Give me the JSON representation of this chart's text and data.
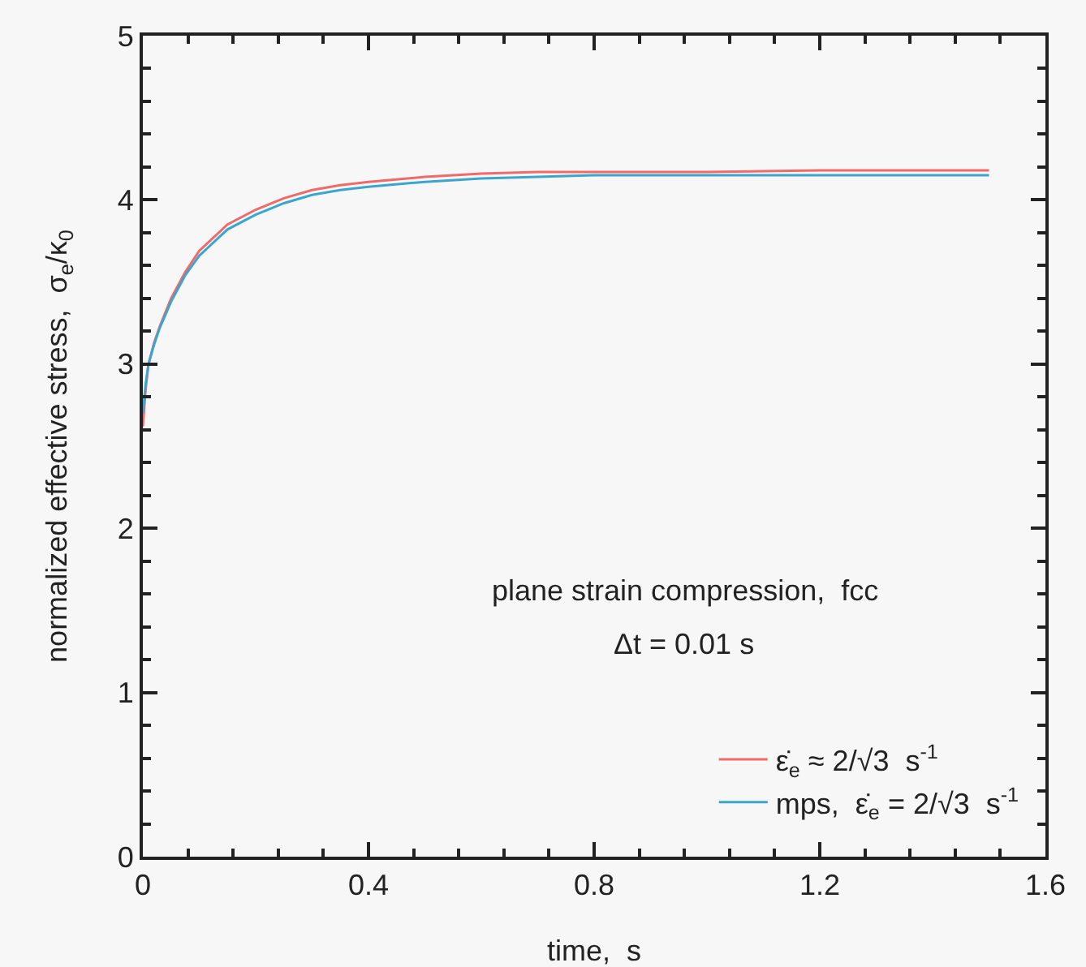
{
  "chart_data": {
    "type": "line",
    "xlabel": "time,  s",
    "ylabel": "normalized effective stress,  σ$_{e}$/κ$_{0}$",
    "xlim": [
      0,
      1.6
    ],
    "xticks": [
      0,
      0.4,
      0.8,
      1.2,
      1.6
    ],
    "ylim": [
      0,
      5
    ],
    "yticks": [
      0,
      1,
      2,
      3,
      4,
      5
    ],
    "grid": false,
    "legend": "bottom right",
    "line_style": "solid",
    "marker": "none",
    "annotations": [
      "plane strain compression,  fcc",
      "Δt = 0.01 s"
    ],
    "series": [
      {
        "name": "ε̇$_{e}$ ≈ 2/√3  s$^{-1}$",
        "color": "#f06a6a",
        "x": [
          0,
          0.005,
          0.01,
          0.02,
          0.03,
          0.05,
          0.075,
          0.1,
          0.15,
          0.2,
          0.25,
          0.3,
          0.35,
          0.4,
          0.5,
          0.6,
          0.7,
          0.8,
          1.0,
          1.2,
          1.4,
          1.5
        ],
        "values": [
          2.62,
          2.85,
          3.0,
          3.13,
          3.23,
          3.4,
          3.56,
          3.69,
          3.85,
          3.94,
          4.01,
          4.06,
          4.09,
          4.11,
          4.14,
          4.16,
          4.17,
          4.17,
          4.17,
          4.18,
          4.18,
          4.18
        ]
      },
      {
        "name": "mps,  ε̇$_{e}$ = 2/√3  s$^{-1}$",
        "color": "#3aa6d0",
        "x": [
          0,
          0.005,
          0.01,
          0.02,
          0.03,
          0.05,
          0.075,
          0.1,
          0.15,
          0.2,
          0.25,
          0.3,
          0.35,
          0.4,
          0.5,
          0.6,
          0.7,
          0.8,
          1.0,
          1.2,
          1.4,
          1.5
        ],
        "values": [
          2.7,
          2.88,
          3.0,
          3.12,
          3.22,
          3.38,
          3.54,
          3.66,
          3.82,
          3.91,
          3.98,
          4.03,
          4.06,
          4.08,
          4.11,
          4.13,
          4.14,
          4.15,
          4.15,
          4.15,
          4.15,
          4.15
        ]
      }
    ]
  }
}
